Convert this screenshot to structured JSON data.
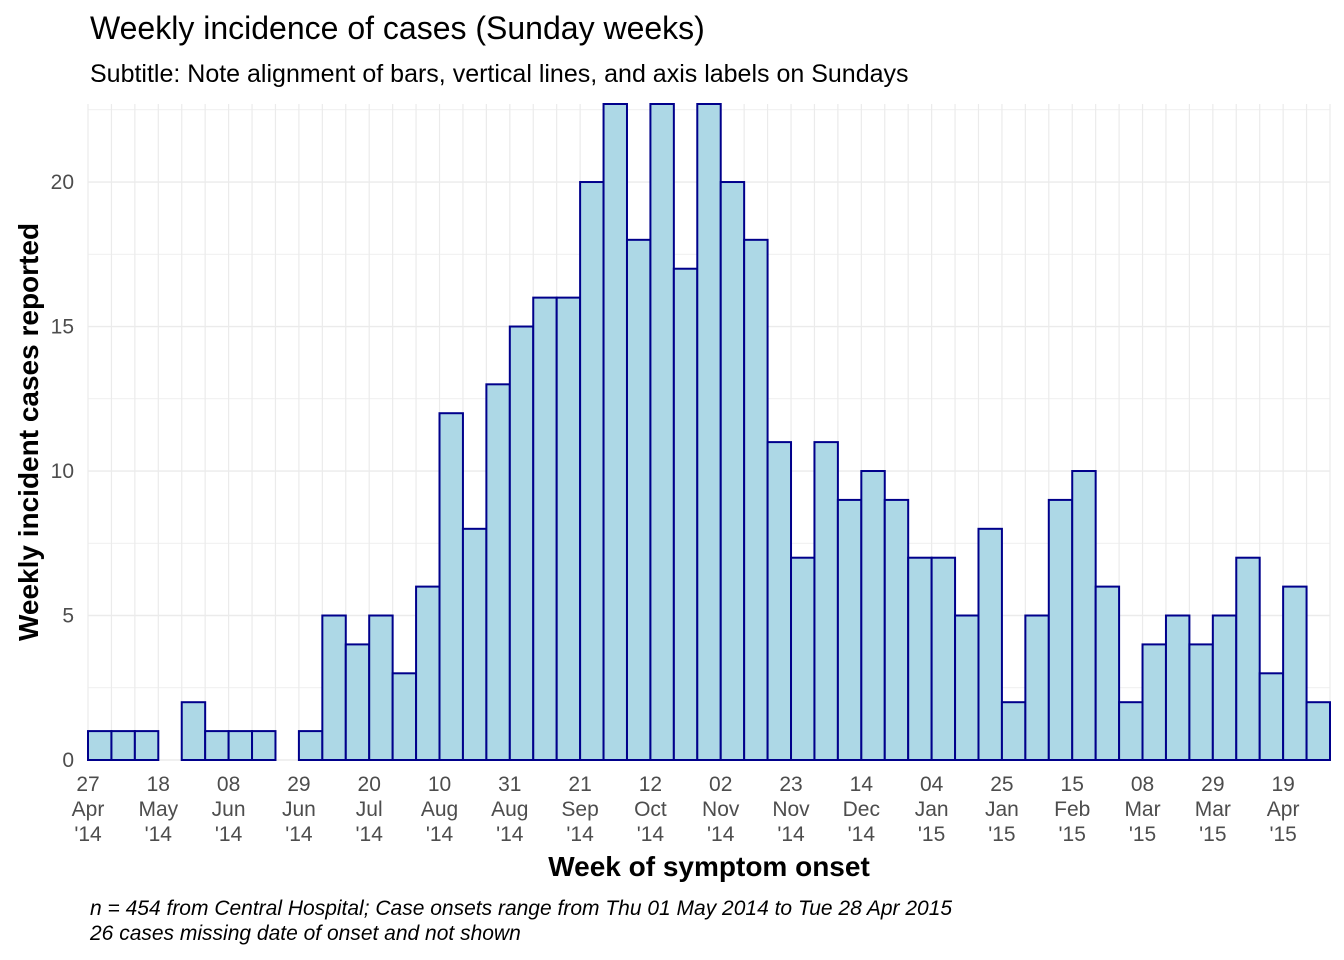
{
  "chart_data": {
    "type": "bar",
    "title": "Weekly incidence of cases (Sunday weeks)",
    "subtitle": "Subtitle: Note alignment of bars, vertical lines, and axis labels on Sundays",
    "xlabel": "Week of symptom onset",
    "ylabel": "Weekly incident cases reported",
    "caption_lines": [
      "n = 454 from Central Hospital; Case onsets range from Thu 01 May 2014 to Tue 28 Apr 2015",
      "26 cases missing date of onset and not shown"
    ],
    "ylim": [
      0,
      22.7
    ],
    "y_ticks": [
      0,
      5,
      10,
      15,
      20
    ],
    "grid": true,
    "bar_fill": "#add8e6",
    "bar_outline": "#00008b",
    "weeks": [
      "2014-04-27",
      "2014-05-04",
      "2014-05-11",
      "2014-05-18",
      "2014-05-25",
      "2014-06-01",
      "2014-06-08",
      "2014-06-15",
      "2014-06-22",
      "2014-06-29",
      "2014-07-06",
      "2014-07-13",
      "2014-07-20",
      "2014-07-27",
      "2014-08-03",
      "2014-08-10",
      "2014-08-17",
      "2014-08-24",
      "2014-08-31",
      "2014-09-07",
      "2014-09-14",
      "2014-09-21",
      "2014-09-28",
      "2014-10-05",
      "2014-10-12",
      "2014-10-19",
      "2014-10-26",
      "2014-11-02",
      "2014-11-09",
      "2014-11-16",
      "2014-11-23",
      "2014-11-30",
      "2014-12-07",
      "2014-12-14",
      "2014-12-21",
      "2014-12-28",
      "2015-01-04",
      "2015-01-11",
      "2015-01-18",
      "2015-01-25",
      "2015-02-01",
      "2015-02-08",
      "2015-02-15",
      "2015-02-22",
      "2015-03-01",
      "2015-03-08",
      "2015-03-15",
      "2015-03-22",
      "2015-03-29",
      "2015-04-05",
      "2015-04-12",
      "2015-04-19",
      "2015-04-26"
    ],
    "values": [
      1,
      1,
      1,
      0,
      2,
      1,
      1,
      1,
      0,
      1,
      5,
      4,
      5,
      3,
      6,
      12,
      8,
      13,
      15,
      16,
      16,
      20,
      23,
      18,
      23,
      17,
      23,
      20,
      18,
      11,
      7,
      11,
      9,
      10,
      9,
      7,
      7,
      5,
      8,
      2,
      5,
      9,
      10,
      6,
      2,
      4,
      5,
      4,
      5,
      7,
      3,
      6,
      2
    ],
    "x_tick_labels": [
      {
        "day": "27",
        "month": "Apr",
        "year": "'14"
      },
      {
        "day": "18",
        "month": "May",
        "year": "'14"
      },
      {
        "day": "08",
        "month": "Jun",
        "year": "'14"
      },
      {
        "day": "29",
        "month": "Jun",
        "year": "'14"
      },
      {
        "day": "20",
        "month": "Jul",
        "year": "'14"
      },
      {
        "day": "10",
        "month": "Aug",
        "year": "'14"
      },
      {
        "day": "31",
        "month": "Aug",
        "year": "'14"
      },
      {
        "day": "21",
        "month": "Sep",
        "year": "'14"
      },
      {
        "day": "12",
        "month": "Oct",
        "year": "'14"
      },
      {
        "day": "02",
        "month": "Nov",
        "year": "'14"
      },
      {
        "day": "23",
        "month": "Nov",
        "year": "'14"
      },
      {
        "day": "14",
        "month": "Dec",
        "year": "'14"
      },
      {
        "day": "04",
        "month": "Jan",
        "year": "'15"
      },
      {
        "day": "25",
        "month": "Jan",
        "year": "'15"
      },
      {
        "day": "15",
        "month": "Feb",
        "year": "'15"
      },
      {
        "day": "08",
        "month": "Mar",
        "year": "'15"
      },
      {
        "day": "29",
        "month": "Mar",
        "year": "'15"
      },
      {
        "day": "19",
        "month": "Apr",
        "year": "'15"
      }
    ]
  }
}
